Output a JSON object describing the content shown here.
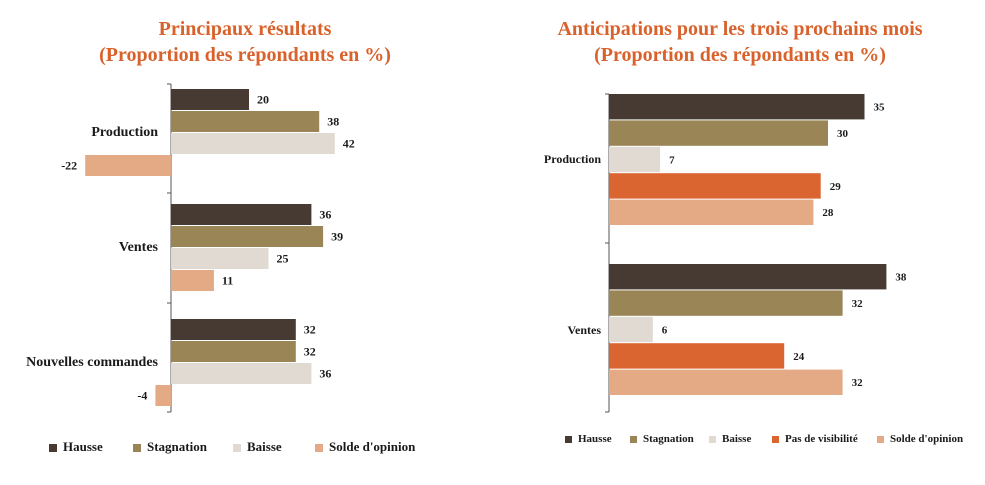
{
  "chart_data": [
    {
      "type": "bar",
      "orientation": "horizontal",
      "title_lines": [
        "Principaux résultats",
        "(Proportion des répondants en %)"
      ],
      "categories": [
        "Production",
        "Ventes",
        "Nouvelles commandes"
      ],
      "series": [
        {
          "name": "Hausse",
          "color": "#463A32",
          "values": [
            20,
            36,
            32
          ]
        },
        {
          "name": "Stagnation",
          "color": "#9A8557",
          "values": [
            38,
            39,
            32
          ]
        },
        {
          "name": "Baisse",
          "color": "#E0DAD2",
          "values": [
            42,
            25,
            36
          ]
        },
        {
          "name": "Solde d'opinion",
          "color": "#E4A985",
          "values": [
            -22,
            11,
            -4
          ]
        }
      ],
      "xlim": [
        -22,
        50
      ],
      "legend": "bottom",
      "grid": false
    },
    {
      "type": "bar",
      "orientation": "horizontal",
      "title_lines": [
        "Anticipations pour les trois prochains mois",
        "(Proportion des répondants en %)"
      ],
      "categories": [
        "Production",
        "Ventes"
      ],
      "series": [
        {
          "name": "Hausse",
          "color": "#463A32",
          "values": [
            35,
            38
          ]
        },
        {
          "name": "Stagnation",
          "color": "#9A8557",
          "values": [
            30,
            32
          ]
        },
        {
          "name": "Baisse",
          "color": "#E0DAD2",
          "values": [
            7,
            6
          ]
        },
        {
          "name": "Pas de visibilité",
          "color": "#DA6530",
          "values": [
            29,
            24
          ]
        },
        {
          "name": "Solde d'opinion",
          "color": "#E4A985",
          "values": [
            28,
            32
          ]
        }
      ],
      "xlim": [
        0,
        40
      ],
      "legend": "bottom",
      "grid": false
    }
  ]
}
